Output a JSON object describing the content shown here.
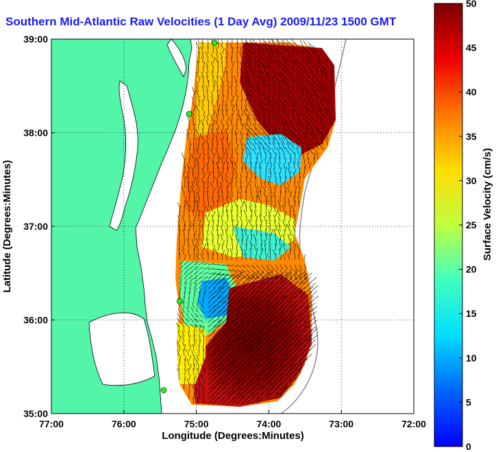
{
  "chart_data": {
    "type": "heatmap",
    "title": "Southern Mid-Atlantic Raw Velocities (1 Day Avg) 2009/11/23 1500 GMT",
    "xlabel": "Longitude (Degrees:Minutes)",
    "ylabel": "Latitude (Degrees:Minutes)",
    "xlim": [
      -77,
      -72
    ],
    "ylim": [
      35,
      39
    ],
    "x_ticks": [
      -77,
      -76,
      -75,
      -74,
      -73,
      -72
    ],
    "x_tick_labels": [
      "77:00",
      "76:00",
      "75:00",
      "74:00",
      "73:00",
      "72:00"
    ],
    "y_ticks": [
      35,
      36,
      37,
      38,
      39
    ],
    "y_tick_labels": [
      "35:00",
      "36:00",
      "37:00",
      "38:00",
      "39:00"
    ],
    "grid": true,
    "colorbar": {
      "label": "Surface Velocity (cm/s)",
      "min": 0,
      "max": 50,
      "ticks": [
        0,
        5,
        10,
        15,
        20,
        25,
        30,
        35,
        40,
        45,
        50
      ],
      "colormap": "jet"
    },
    "colors": {
      "land": "#53f5a8",
      "water": "#ffffff",
      "title": "#1a1aff",
      "station": "#22ee22",
      "vectors": "#000000",
      "bathymetry": "#8a8a8a"
    },
    "stations": [
      {
        "lon": -74.75,
        "lat": 38.96
      },
      {
        "lon": -75.1,
        "lat": 38.2
      },
      {
        "lon": -75.23,
        "lat": 36.2
      },
      {
        "lon": -75.45,
        "lat": 35.25
      }
    ],
    "velocity_field_summary": [
      {
        "region": "northeast lobe",
        "lon": -73.6,
        "lat": 38.4,
        "speed_cm_s": 48
      },
      {
        "region": "central low",
        "lon": -73.8,
        "lat": 37.7,
        "speed_cm_s": 12
      },
      {
        "region": "southern eddy core",
        "lon": -74.6,
        "lat": 36.2,
        "speed_cm_s": 10
      },
      {
        "region": "southeast jet",
        "lon": -74.2,
        "lat": 35.6,
        "speed_cm_s": 50
      },
      {
        "region": "mid shelf",
        "lon": -74.5,
        "lat": 37.1,
        "speed_cm_s": 28
      }
    ]
  }
}
